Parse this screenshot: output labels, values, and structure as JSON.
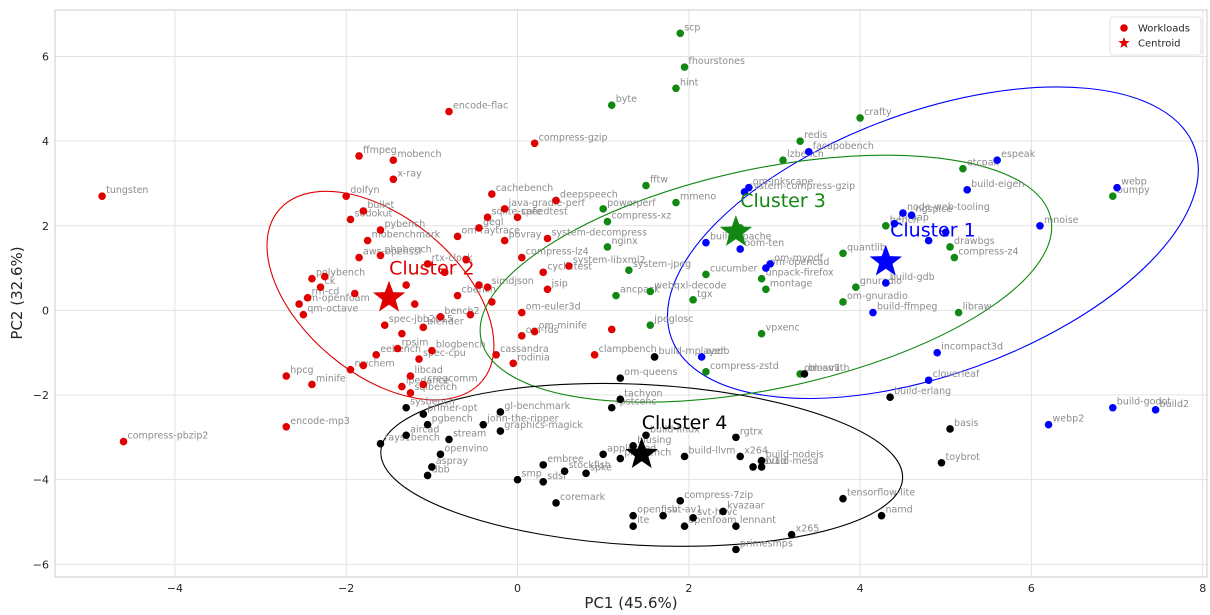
{
  "chart_data": {
    "type": "scatter",
    "xlabel": "PC1 (45.6%)",
    "ylabel": "PC2 (32.6%)",
    "xlim": [
      -5.4,
      8.05
    ],
    "ylim": [
      -6.3,
      7.1
    ],
    "xticks": [
      -4,
      -2,
      0,
      2,
      4,
      6,
      8
    ],
    "yticks": [
      -6,
      -4,
      -2,
      0,
      2,
      4,
      6
    ],
    "grid": true,
    "legend": {
      "placement": "top-right",
      "entries": [
        {
          "label": "Workloads",
          "marker": "circle",
          "color": "#e00000"
        },
        {
          "label": "Centroid",
          "marker": "star",
          "color": "#e00000"
        }
      ]
    },
    "clusters": [
      {
        "name": "Cluster 1",
        "color": "#0000ff",
        "centroid": [
          4.3,
          1.15
        ],
        "ellipse": {
          "cx": 4.85,
          "cy": 1.6,
          "rx": 3.25,
          "ry": 3.1,
          "angle": -20
        },
        "label_at": [
          4.85,
          1.75
        ]
      },
      {
        "name": "Cluster 2",
        "color": "#e00000",
        "centroid": [
          -1.5,
          0.3
        ],
        "ellipse": {
          "cx": -1.6,
          "cy": 0.35,
          "rx": 1.55,
          "ry": 1.85,
          "angle": 40
        },
        "label_at": [
          -1.0,
          0.85
        ]
      },
      {
        "name": "Cluster 3",
        "color": "#118811",
        "centroid": [
          2.55,
          1.85
        ],
        "ellipse": {
          "cx": 2.9,
          "cy": 0.75,
          "rx": 3.4,
          "ry": 2.6,
          "angle": -12
        },
        "label_at": [
          3.1,
          2.45
        ]
      },
      {
        "name": "Cluster 4",
        "color": "#000000",
        "centroid": [
          1.45,
          -3.4
        ],
        "ellipse": {
          "cx": 1.45,
          "cy": -3.65,
          "rx": 3.05,
          "ry": 1.9,
          "angle": 3
        },
        "label_at": [
          1.95,
          -2.8
        ]
      }
    ],
    "points": [
      {
        "x": -4.85,
        "y": 2.7,
        "c": 2,
        "label": "tungsten"
      },
      {
        "x": -4.6,
        "y": -3.1,
        "c": 2,
        "label": "compress-pbzip2"
      },
      {
        "x": -2.7,
        "y": -2.75,
        "c": 2,
        "label": "encode-mp3"
      },
      {
        "x": -2.4,
        "y": -1.75,
        "c": 2,
        "label": "minife"
      },
      {
        "x": -2.7,
        "y": -1.55,
        "c": 2,
        "label": "hpcg"
      },
      {
        "x": -1.85,
        "y": 3.65,
        "c": 2,
        "label": "ffmpeg"
      },
      {
        "x": -1.45,
        "y": 3.1,
        "c": 2,
        "label": "x-ray"
      },
      {
        "x": -1.45,
        "y": 3.55,
        "c": 2,
        "label": "mobench"
      },
      {
        "x": -2.0,
        "y": 2.7,
        "c": 2,
        "label": "dolfyn"
      },
      {
        "x": -1.8,
        "y": 2.35,
        "c": 2,
        "label": "bullet"
      },
      {
        "x": -1.95,
        "y": 2.15,
        "c": 2,
        "label": "sudokut"
      },
      {
        "x": -1.6,
        "y": 1.9,
        "c": 2,
        "label": "pybench"
      },
      {
        "x": -1.75,
        "y": 1.65,
        "c": 2,
        "label": "mobenchmark"
      },
      {
        "x": -1.6,
        "y": 1.3,
        "c": 2,
        "label": "phpbench"
      },
      {
        "x": -1.85,
        "y": 1.25,
        "c": 2,
        "label": "aws-openssl"
      },
      {
        "x": -2.25,
        "y": 0.8,
        "c": 2,
        "label": ""
      },
      {
        "x": -2.4,
        "y": 0.75,
        "c": 2,
        "label": "polybench"
      },
      {
        "x": -2.3,
        "y": 0.55,
        "c": 2,
        "label": "ck"
      },
      {
        "x": -2.45,
        "y": 0.3,
        "c": 2,
        "label": "rm-cd"
      },
      {
        "x": -2.55,
        "y": 0.15,
        "c": 2,
        "label": "om-openfoam"
      },
      {
        "x": -2.5,
        "y": -0.1,
        "c": 2,
        "label": "qm-octave"
      },
      {
        "x": -1.9,
        "y": 0.4,
        "c": 2,
        "label": ""
      },
      {
        "x": -1.3,
        "y": 0.6,
        "c": 2,
        "label": ""
      },
      {
        "x": -1.2,
        "y": 0.15,
        "c": 2,
        "label": ""
      },
      {
        "x": -1.55,
        "y": -0.35,
        "c": 2,
        "label": "spec-jbb2015"
      },
      {
        "x": -1.35,
        "y": -0.55,
        "c": 2,
        "label": ""
      },
      {
        "x": -1.1,
        "y": -0.4,
        "c": 2,
        "label": "blender"
      },
      {
        "x": -0.9,
        "y": -0.15,
        "c": 2,
        "label": "bench2"
      },
      {
        "x": -0.7,
        "y": 0.35,
        "c": 2,
        "label": "cbench"
      },
      {
        "x": -0.45,
        "y": 0.6,
        "c": 2,
        "label": ""
      },
      {
        "x": -0.55,
        "y": -0.1,
        "c": 2,
        "label": ""
      },
      {
        "x": -1.4,
        "y": -0.9,
        "c": 2,
        "label": "rpsim"
      },
      {
        "x": -1.0,
        "y": -0.95,
        "c": 2,
        "label": "blogbench"
      },
      {
        "x": -1.15,
        "y": -1.15,
        "c": 2,
        "label": "spec-cpu"
      },
      {
        "x": -1.65,
        "y": -1.05,
        "c": 2,
        "label": "eebench"
      },
      {
        "x": -1.95,
        "y": -1.4,
        "c": 2,
        "label": "nwchem"
      },
      {
        "x": -1.8,
        "y": -1.3,
        "c": 2,
        "label": ""
      },
      {
        "x": -1.25,
        "y": -1.55,
        "c": 2,
        "label": "libcad"
      },
      {
        "x": -1.35,
        "y": -1.8,
        "c": 2,
        "label": "ipedance"
      },
      {
        "x": -1.25,
        "y": -1.95,
        "c": 2,
        "label": "sqlbench"
      },
      {
        "x": -1.1,
        "y": -1.75,
        "c": 2,
        "label": "cregcomm"
      },
      {
        "x": -1.05,
        "y": 1.1,
        "c": 2,
        "label": "rtx-clock"
      },
      {
        "x": -0.85,
        "y": 0.9,
        "c": 2,
        "label": ""
      },
      {
        "x": -0.6,
        "y": 1.2,
        "c": 2,
        "label": ""
      },
      {
        "x": -0.7,
        "y": 1.75,
        "c": 2,
        "label": "om-raytrace"
      },
      {
        "x": -0.45,
        "y": 1.95,
        "c": 2,
        "label": "gegl"
      },
      {
        "x": -0.15,
        "y": 1.65,
        "c": 2,
        "label": "povray"
      },
      {
        "x": 0.05,
        "y": 1.25,
        "c": 2,
        "label": "compress-lz4"
      },
      {
        "x": -0.35,
        "y": 2.2,
        "c": 2,
        "label": "sqlite-speedtest"
      },
      {
        "x": -0.3,
        "y": 2.75,
        "c": 2,
        "label": "cachebench"
      },
      {
        "x": -0.15,
        "y": 2.4,
        "c": 2,
        "label": "java-gradle-perf"
      },
      {
        "x": 0.0,
        "y": 2.2,
        "c": 2,
        "label": "cafe"
      },
      {
        "x": 0.45,
        "y": 2.6,
        "c": 2,
        "label": "deepspeech"
      },
      {
        "x": 0.2,
        "y": 3.95,
        "c": 2,
        "label": "compress-gzip"
      },
      {
        "x": -0.8,
        "y": 4.7,
        "c": 2,
        "label": "encode-flac"
      },
      {
        "x": 0.35,
        "y": 1.7,
        "c": 2,
        "label": "system-decompress"
      },
      {
        "x": 0.6,
        "y": 1.05,
        "c": 2,
        "label": "system-libxml2"
      },
      {
        "x": 0.3,
        "y": 0.9,
        "c": 2,
        "label": "cyclictest"
      },
      {
        "x": -0.35,
        "y": 0.55,
        "c": 2,
        "label": "simdjson"
      },
      {
        "x": 0.35,
        "y": 0.5,
        "c": 2,
        "label": "jsip"
      },
      {
        "x": -0.3,
        "y": 0.2,
        "c": 2,
        "label": ""
      },
      {
        "x": 0.05,
        "y": -0.05,
        "c": 2,
        "label": "om-euler3d"
      },
      {
        "x": 0.2,
        "y": -0.5,
        "c": 2,
        "label": "om-minife"
      },
      {
        "x": 0.05,
        "y": -0.6,
        "c": 2,
        "label": "om-fds"
      },
      {
        "x": -0.25,
        "y": -1.05,
        "c": 2,
        "label": "cassandra"
      },
      {
        "x": -0.05,
        "y": -1.25,
        "c": 2,
        "label": "rodinia"
      },
      {
        "x": 0.9,
        "y": -1.05,
        "c": 2,
        "label": "clampbench"
      },
      {
        "x": 1.1,
        "y": -0.45,
        "c": 2,
        "label": ""
      },
      {
        "x": 3.3,
        "y": 4.0,
        "c": 3,
        "label": "redis"
      },
      {
        "x": 1.9,
        "y": 6.55,
        "c": 3,
        "label": "scp"
      },
      {
        "x": 1.95,
        "y": 5.75,
        "c": 3,
        "label": "fhourstones"
      },
      {
        "x": 1.85,
        "y": 5.25,
        "c": 3,
        "label": "hint"
      },
      {
        "x": 1.1,
        "y": 4.85,
        "c": 3,
        "label": "byte"
      },
      {
        "x": 4.0,
        "y": 4.55,
        "c": 3,
        "label": "crafty"
      },
      {
        "x": 3.1,
        "y": 3.55,
        "c": 3,
        "label": "lzbench"
      },
      {
        "x": 5.2,
        "y": 3.35,
        "c": 3,
        "label": "etcpak"
      },
      {
        "x": 6.95,
        "y": 2.7,
        "c": 3,
        "label": "bumpy"
      },
      {
        "x": 1.85,
        "y": 2.55,
        "c": 3,
        "label": "mmeno"
      },
      {
        "x": 1.5,
        "y": 2.95,
        "c": 3,
        "label": "fftw"
      },
      {
        "x": 1.0,
        "y": 2.4,
        "c": 3,
        "label": "powerperf"
      },
      {
        "x": 1.05,
        "y": 2.1,
        "c": 3,
        "label": "compress-xz"
      },
      {
        "x": 1.05,
        "y": 1.5,
        "c": 3,
        "label": "nginx"
      },
      {
        "x": 1.3,
        "y": 0.95,
        "c": 3,
        "label": "system-jpeg"
      },
      {
        "x": 1.15,
        "y": 0.35,
        "c": 3,
        "label": "ancpack"
      },
      {
        "x": 1.55,
        "y": 0.45,
        "c": 3,
        "label": "webqxl-decode"
      },
      {
        "x": 2.05,
        "y": 0.25,
        "c": 3,
        "label": "tgx"
      },
      {
        "x": 2.2,
        "y": 0.85,
        "c": 3,
        "label": "cucumber"
      },
      {
        "x": 2.9,
        "y": 0.5,
        "c": 3,
        "label": "montage"
      },
      {
        "x": 2.85,
        "y": 0.75,
        "c": 3,
        "label": "unpack-firefox"
      },
      {
        "x": 3.8,
        "y": 0.2,
        "c": 3,
        "label": "om-gnuradio"
      },
      {
        "x": 3.95,
        "y": 0.55,
        "c": 3,
        "label": "gnuradio"
      },
      {
        "x": 2.85,
        "y": -0.55,
        "c": 3,
        "label": "vpxenc"
      },
      {
        "x": 1.55,
        "y": -0.35,
        "c": 3,
        "label": "jpeglosc"
      },
      {
        "x": 3.8,
        "y": 1.35,
        "c": 3,
        "label": "quantlib"
      },
      {
        "x": 4.3,
        "y": 2.0,
        "c": 3,
        "label": "bench"
      },
      {
        "x": 5.1,
        "y": 1.25,
        "c": 3,
        "label": "compress-z4"
      },
      {
        "x": 5.05,
        "y": 1.5,
        "c": 3,
        "label": "drawbgs"
      },
      {
        "x": 5.15,
        "y": -0.05,
        "c": 3,
        "label": "libraw"
      },
      {
        "x": 3.3,
        "y": -1.5,
        "c": 3,
        "label": "om-av1"
      },
      {
        "x": 1.6,
        "y": -1.1,
        "c": 3,
        "label": "build-mplayer"
      },
      {
        "x": 2.2,
        "y": -1.45,
        "c": 3,
        "label": "compress-zstd"
      },
      {
        "x": 2.6,
        "y": 1.95,
        "c": 3,
        "label": ""
      },
      {
        "x": 3.4,
        "y": 3.75,
        "c": 1,
        "label": "facapobench"
      },
      {
        "x": 5.6,
        "y": 3.55,
        "c": 1,
        "label": "espeak"
      },
      {
        "x": 5.25,
        "y": 2.85,
        "c": 1,
        "label": "build-eigen"
      },
      {
        "x": 7.0,
        "y": 2.9,
        "c": 1,
        "label": "webp"
      },
      {
        "x": 6.1,
        "y": 2.0,
        "c": 1,
        "label": "mnoise"
      },
      {
        "x": 2.65,
        "y": 2.8,
        "c": 1,
        "label": "system-compress-gzip"
      },
      {
        "x": 2.7,
        "y": 2.9,
        "c": 1,
        "label": "om-inkscape"
      },
      {
        "x": 4.5,
        "y": 2.3,
        "c": 1,
        "label": "node-web-tooling"
      },
      {
        "x": 4.6,
        "y": 2.25,
        "c": 1,
        "label": "ngspice"
      },
      {
        "x": 4.4,
        "y": 2.05,
        "c": 1,
        "label": "mmap"
      },
      {
        "x": 5.0,
        "y": 1.85,
        "c": 1,
        "label": ""
      },
      {
        "x": 4.8,
        "y": 1.65,
        "c": 1,
        "label": ""
      },
      {
        "x": 2.2,
        "y": 1.6,
        "c": 1,
        "label": "build-apache"
      },
      {
        "x": 2.6,
        "y": 1.45,
        "c": 1,
        "label": "oom-ten"
      },
      {
        "x": 2.95,
        "y": 1.1,
        "c": 1,
        "label": "om-mypdf"
      },
      {
        "x": 2.9,
        "y": 1.0,
        "c": 1,
        "label": "om-opencad"
      },
      {
        "x": 4.3,
        "y": 0.65,
        "c": 1,
        "label": "build-gdb"
      },
      {
        "x": 4.15,
        "y": -0.05,
        "c": 1,
        "label": "build-ffmpeg"
      },
      {
        "x": 4.9,
        "y": -1.0,
        "c": 1,
        "label": "incompact3d"
      },
      {
        "x": 4.8,
        "y": -1.65,
        "c": 1,
        "label": "cloverleaf"
      },
      {
        "x": 6.95,
        "y": -2.3,
        "c": 1,
        "label": "build-godot"
      },
      {
        "x": 7.45,
        "y": -2.35,
        "c": 1,
        "label": "build2"
      },
      {
        "x": 6.2,
        "y": -2.7,
        "c": 1,
        "label": "webp2"
      },
      {
        "x": 2.15,
        "y": -1.1,
        "c": 1,
        "label": "aadb"
      },
      {
        "x": -1.3,
        "y": -2.3,
        "c": 4,
        "label": "sysbench"
      },
      {
        "x": -1.1,
        "y": -2.45,
        "c": 4,
        "label": "primer-opt"
      },
      {
        "x": -1.05,
        "y": -2.7,
        "c": 4,
        "label": "pgbench"
      },
      {
        "x": -0.4,
        "y": -2.7,
        "c": 4,
        "label": "john-the-ripper"
      },
      {
        "x": -1.3,
        "y": -2.95,
        "c": 4,
        "label": "aircad"
      },
      {
        "x": -0.8,
        "y": -3.05,
        "c": 4,
        "label": "stream"
      },
      {
        "x": -1.6,
        "y": -3.15,
        "c": 4,
        "label": "rays1bench"
      },
      {
        "x": -0.9,
        "y": -3.4,
        "c": 4,
        "label": "openvino"
      },
      {
        "x": -1.0,
        "y": -3.7,
        "c": 4,
        "label": "aspray"
      },
      {
        "x": -1.05,
        "y": -3.9,
        "c": 4,
        "label": "dbb"
      },
      {
        "x": -0.2,
        "y": -2.4,
        "c": 4,
        "label": "gl-benchmark"
      },
      {
        "x": -0.2,
        "y": -2.85,
        "c": 4,
        "label": "graphics-magick"
      },
      {
        "x": 1.1,
        "y": -2.3,
        "c": 4,
        "label": "rpstcenc"
      },
      {
        "x": 1.2,
        "y": -2.1,
        "c": 4,
        "label": "tachyon"
      },
      {
        "x": 1.2,
        "y": -1.6,
        "c": 4,
        "label": "om-queens"
      },
      {
        "x": 1.5,
        "y": -2.95,
        "c": 4,
        "label": "build-linux"
      },
      {
        "x": 1.35,
        "y": -3.2,
        "c": 4,
        "label": "blusing"
      },
      {
        "x": 1.0,
        "y": -3.4,
        "c": 4,
        "label": "appleseed"
      },
      {
        "x": 1.2,
        "y": -3.5,
        "c": 4,
        "label": "phobench"
      },
      {
        "x": 1.95,
        "y": -3.45,
        "c": 4,
        "label": "build-llvm"
      },
      {
        "x": 0.3,
        "y": -3.65,
        "c": 4,
        "label": "embree"
      },
      {
        "x": 0.55,
        "y": -3.8,
        "c": 4,
        "label": "stockfish"
      },
      {
        "x": 0.8,
        "y": -3.85,
        "c": 4,
        "label": "spke"
      },
      {
        "x": 0.0,
        "y": -4.0,
        "c": 4,
        "label": "smp"
      },
      {
        "x": 0.3,
        "y": -4.05,
        "c": 4,
        "label": "sdsi"
      },
      {
        "x": 0.45,
        "y": -4.55,
        "c": 4,
        "label": "coremark"
      },
      {
        "x": 1.9,
        "y": -4.5,
        "c": 4,
        "label": "compress-7zip"
      },
      {
        "x": 2.4,
        "y": -4.75,
        "c": 4,
        "label": "kvazaar"
      },
      {
        "x": 1.7,
        "y": -4.85,
        "c": 4,
        "label": "svt-av1"
      },
      {
        "x": 2.05,
        "y": -4.9,
        "c": 4,
        "label": "svt-hevc"
      },
      {
        "x": 1.35,
        "y": -4.85,
        "c": 4,
        "label": "openfish"
      },
      {
        "x": 1.35,
        "y": -5.1,
        "c": 4,
        "label": "ite"
      },
      {
        "x": 1.95,
        "y": -5.1,
        "c": 4,
        "label": "openfoam"
      },
      {
        "x": 2.55,
        "y": -5.1,
        "c": 4,
        "label": "lennant"
      },
      {
        "x": 2.55,
        "y": -5.65,
        "c": 4,
        "label": "primesmps"
      },
      {
        "x": 3.2,
        "y": -5.3,
        "c": 4,
        "label": "x265"
      },
      {
        "x": 2.85,
        "y": -3.55,
        "c": 4,
        "label": "build-nodejs"
      },
      {
        "x": 2.85,
        "y": -3.7,
        "c": 4,
        "label": "build-mesa"
      },
      {
        "x": 2.6,
        "y": -3.45,
        "c": 4,
        "label": "x264"
      },
      {
        "x": 2.75,
        "y": -3.7,
        "c": 4,
        "label": "dav1d"
      },
      {
        "x": 2.55,
        "y": -3.0,
        "c": 4,
        "label": "rgtrx"
      },
      {
        "x": 3.8,
        "y": -4.45,
        "c": 4,
        "label": "tensorflow-lite"
      },
      {
        "x": 4.25,
        "y": -4.85,
        "c": 4,
        "label": "namd"
      },
      {
        "x": 5.05,
        "y": -2.8,
        "c": 4,
        "label": "basis"
      },
      {
        "x": 4.95,
        "y": -3.6,
        "c": 4,
        "label": "toybrot"
      },
      {
        "x": 4.35,
        "y": -2.05,
        "c": 4,
        "label": "build-erlang"
      },
      {
        "x": 3.35,
        "y": -1.5,
        "c": 4,
        "label": "blosmith"
      },
      {
        "x": 1.6,
        "y": -1.1,
        "c": 4,
        "label": ""
      }
    ]
  }
}
